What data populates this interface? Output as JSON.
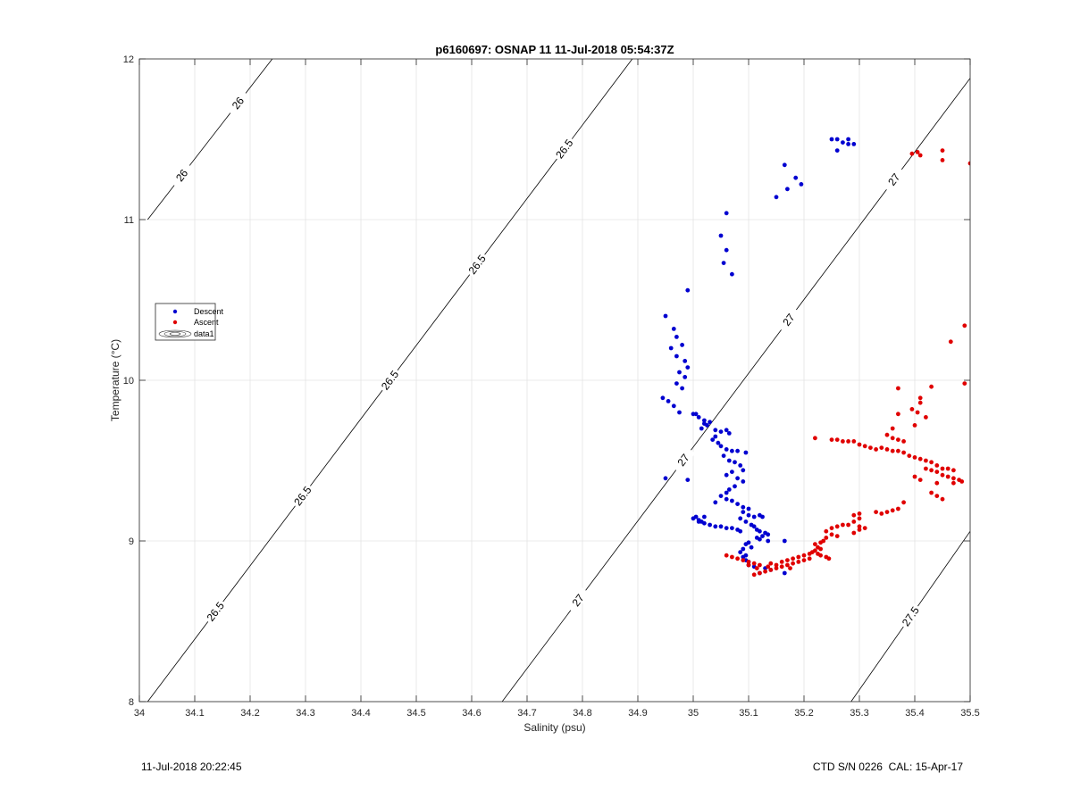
{
  "chart_data": {
    "type": "scatter",
    "title": "p6160697: OSNAP 11 11-Jul-2018 05:54:37Z",
    "xlabel": "Salinity (psu)",
    "ylabel": "Temperature (°C)",
    "xlim": [
      34,
      35.5
    ],
    "ylim": [
      8,
      12
    ],
    "x_ticks": [
      "34",
      "34.1",
      "34.2",
      "34.3",
      "34.4",
      "34.5",
      "34.6",
      "34.7",
      "34.8",
      "34.9",
      "35",
      "35.1",
      "35.2",
      "35.3",
      "35.4",
      "35.5"
    ],
    "y_ticks": [
      "8",
      "9",
      "10",
      "11",
      "12"
    ],
    "grid": true,
    "legend": {
      "placement": "left",
      "entries": [
        {
          "name": "Descent",
          "marker": "dot",
          "color": "#0000d0"
        },
        {
          "name": "Ascent",
          "marker": "dot",
          "color": "#e00000"
        },
        {
          "name": "data1",
          "marker": "contour"
        }
      ]
    },
    "density_contours": [
      {
        "label": "26",
        "levels_text": [
          "26",
          "26"
        ],
        "points": [
          [
            34.015,
            11.0
          ],
          [
            34.24,
            12.0
          ]
        ]
      },
      {
        "label": "26.5",
        "levels_text": [
          "26.5",
          "26.5",
          "26.5",
          "26.5",
          "26.5"
        ],
        "points": [
          [
            34.015,
            8.0
          ],
          [
            34.89,
            12.0
          ]
        ]
      },
      {
        "label": "27",
        "levels_text": [
          "27",
          "27",
          "27",
          "27"
        ],
        "points": [
          [
            34.655,
            8.0
          ],
          [
            35.5,
            11.88
          ]
        ]
      },
      {
        "label": "27.5",
        "levels_text": [
          "27.5"
        ],
        "points": [
          [
            35.285,
            8.0
          ],
          [
            35.5,
            9.06
          ]
        ]
      }
    ],
    "series": [
      {
        "name": "Descent",
        "color": "#0000d0",
        "points": [
          [
            35.25,
            11.5
          ],
          [
            35.26,
            11.5
          ],
          [
            35.27,
            11.48
          ],
          [
            35.28,
            11.5
          ],
          [
            35.29,
            11.47
          ],
          [
            35.26,
            11.43
          ],
          [
            35.28,
            11.47
          ],
          [
            35.165,
            11.34
          ],
          [
            35.185,
            11.26
          ],
          [
            35.195,
            11.22
          ],
          [
            35.17,
            11.19
          ],
          [
            35.15,
            11.14
          ],
          [
            35.06,
            11.04
          ],
          [
            35.05,
            10.9
          ],
          [
            35.06,
            10.81
          ],
          [
            35.055,
            10.73
          ],
          [
            35.07,
            10.66
          ],
          [
            34.99,
            10.56
          ],
          [
            34.95,
            10.4
          ],
          [
            34.965,
            10.32
          ],
          [
            34.97,
            10.27
          ],
          [
            34.98,
            10.22
          ],
          [
            34.96,
            10.2
          ],
          [
            34.97,
            10.15
          ],
          [
            34.985,
            10.12
          ],
          [
            34.99,
            10.08
          ],
          [
            34.975,
            10.05
          ],
          [
            34.985,
            10.02
          ],
          [
            34.97,
            9.98
          ],
          [
            34.98,
            9.95
          ],
          [
            34.945,
            9.89
          ],
          [
            34.955,
            9.87
          ],
          [
            34.965,
            9.84
          ],
          [
            34.975,
            9.8
          ],
          [
            35.0,
            9.79
          ],
          [
            35.005,
            9.79
          ],
          [
            35.01,
            9.77
          ],
          [
            35.02,
            9.75
          ],
          [
            35.02,
            9.73
          ],
          [
            35.025,
            9.72
          ],
          [
            35.03,
            9.74
          ],
          [
            35.015,
            9.7
          ],
          [
            35.04,
            9.69
          ],
          [
            35.05,
            9.68
          ],
          [
            35.06,
            9.69
          ],
          [
            35.065,
            9.67
          ],
          [
            35.04,
            9.65
          ],
          [
            35.035,
            9.63
          ],
          [
            35.045,
            9.61
          ],
          [
            35.05,
            9.59
          ],
          [
            35.06,
            9.57
          ],
          [
            35.07,
            9.56
          ],
          [
            35.08,
            9.56
          ],
          [
            35.095,
            9.55
          ],
          [
            35.055,
            9.53
          ],
          [
            35.065,
            9.5
          ],
          [
            35.075,
            9.49
          ],
          [
            35.085,
            9.47
          ],
          [
            35.09,
            9.44
          ],
          [
            35.07,
            9.43
          ],
          [
            35.06,
            9.41
          ],
          [
            35.08,
            9.39
          ],
          [
            35.09,
            9.37
          ],
          [
            35.075,
            9.34
          ],
          [
            35.065,
            9.32
          ],
          [
            35.06,
            9.3
          ],
          [
            35.05,
            9.28
          ],
          [
            35.06,
            9.26
          ],
          [
            35.07,
            9.25
          ],
          [
            35.08,
            9.23
          ],
          [
            35.09,
            9.21
          ],
          [
            35.1,
            9.2
          ],
          [
            35.04,
            9.24
          ],
          [
            35.09,
            9.18
          ],
          [
            35.1,
            9.16
          ],
          [
            35.11,
            9.15
          ],
          [
            35.12,
            9.16
          ],
          [
            35.125,
            9.15
          ],
          [
            35.085,
            9.14
          ],
          [
            35.095,
            9.12
          ],
          [
            35.105,
            9.1
          ],
          [
            35.11,
            9.09
          ],
          [
            35.115,
            9.07
          ],
          [
            35.12,
            9.06
          ],
          [
            35.13,
            9.05
          ],
          [
            35.135,
            9.04
          ],
          [
            35.125,
            9.03
          ],
          [
            35.115,
            9.02
          ],
          [
            35.12,
            9.01
          ],
          [
            35.135,
            9.0
          ],
          [
            35.165,
            9.0
          ],
          [
            35.1,
            8.99
          ],
          [
            35.095,
            8.98
          ],
          [
            35.105,
            8.96
          ],
          [
            35.09,
            8.95
          ],
          [
            35.085,
            8.93
          ],
          [
            35.095,
            8.91
          ],
          [
            35.09,
            8.9
          ],
          [
            35.095,
            8.88
          ],
          [
            35.1,
            8.87
          ],
          [
            35.1,
            8.85
          ],
          [
            35.11,
            8.84
          ],
          [
            35.13,
            8.83
          ],
          [
            35.14,
            8.82
          ],
          [
            35.12,
            8.8
          ],
          [
            35.165,
            8.8
          ],
          [
            35.0,
            9.14
          ],
          [
            35.005,
            9.15
          ],
          [
            35.01,
            9.13
          ],
          [
            35.015,
            9.12
          ],
          [
            35.02,
            9.11
          ],
          [
            35.03,
            9.1
          ],
          [
            35.04,
            9.09
          ],
          [
            35.05,
            9.09
          ],
          [
            35.06,
            9.08
          ],
          [
            35.07,
            9.08
          ],
          [
            35.08,
            9.07
          ],
          [
            35.085,
            9.06
          ],
          [
            35.02,
            9.15
          ],
          [
            35.01,
            9.12
          ],
          [
            34.95,
            9.39
          ],
          [
            34.99,
            9.38
          ]
        ]
      },
      {
        "name": "Ascent",
        "color": "#e00000",
        "points": [
          [
            35.395,
            11.41
          ],
          [
            35.405,
            11.42
          ],
          [
            35.41,
            11.4
          ],
          [
            35.45,
            11.43
          ],
          [
            35.45,
            11.37
          ],
          [
            35.5,
            11.35
          ],
          [
            35.49,
            10.34
          ],
          [
            35.465,
            10.24
          ],
          [
            35.49,
            9.98
          ],
          [
            35.43,
            9.96
          ],
          [
            35.37,
            9.95
          ],
          [
            35.41,
            9.89
          ],
          [
            35.41,
            9.86
          ],
          [
            35.395,
            9.82
          ],
          [
            35.405,
            9.8
          ],
          [
            35.37,
            9.79
          ],
          [
            35.42,
            9.77
          ],
          [
            35.4,
            9.72
          ],
          [
            35.36,
            9.7
          ],
          [
            35.35,
            9.66
          ],
          [
            35.36,
            9.64
          ],
          [
            35.37,
            9.63
          ],
          [
            35.38,
            9.62
          ],
          [
            35.22,
            9.64
          ],
          [
            35.25,
            9.63
          ],
          [
            35.26,
            9.63
          ],
          [
            35.27,
            9.62
          ],
          [
            35.28,
            9.62
          ],
          [
            35.29,
            9.62
          ],
          [
            35.3,
            9.6
          ],
          [
            35.31,
            9.59
          ],
          [
            35.32,
            9.58
          ],
          [
            35.33,
            9.57
          ],
          [
            35.34,
            9.58
          ],
          [
            35.35,
            9.57
          ],
          [
            35.36,
            9.56
          ],
          [
            35.37,
            9.56
          ],
          [
            35.38,
            9.55
          ],
          [
            35.39,
            9.53
          ],
          [
            35.4,
            9.52
          ],
          [
            35.41,
            9.51
          ],
          [
            35.42,
            9.5
          ],
          [
            35.43,
            9.49
          ],
          [
            35.44,
            9.47
          ],
          [
            35.45,
            9.45
          ],
          [
            35.46,
            9.45
          ],
          [
            35.47,
            9.44
          ],
          [
            35.42,
            9.45
          ],
          [
            35.43,
            9.44
          ],
          [
            35.44,
            9.43
          ],
          [
            35.45,
            9.41
          ],
          [
            35.46,
            9.4
          ],
          [
            35.47,
            9.39
          ],
          [
            35.48,
            9.38
          ],
          [
            35.485,
            9.37
          ],
          [
            35.47,
            9.36
          ],
          [
            35.4,
            9.4
          ],
          [
            35.41,
            9.38
          ],
          [
            35.44,
            9.36
          ],
          [
            35.43,
            9.3
          ],
          [
            35.44,
            9.28
          ],
          [
            35.45,
            9.26
          ],
          [
            35.38,
            9.24
          ],
          [
            35.37,
            9.2
          ],
          [
            35.36,
            9.19
          ],
          [
            35.35,
            9.18
          ],
          [
            35.34,
            9.17
          ],
          [
            35.33,
            9.18
          ],
          [
            35.3,
            9.17
          ],
          [
            35.29,
            9.16
          ],
          [
            35.3,
            9.14
          ],
          [
            35.29,
            9.12
          ],
          [
            35.28,
            9.1
          ],
          [
            35.3,
            9.09
          ],
          [
            35.31,
            9.08
          ],
          [
            35.3,
            9.07
          ],
          [
            35.29,
            9.05
          ],
          [
            35.27,
            9.1
          ],
          [
            35.26,
            9.09
          ],
          [
            35.25,
            9.08
          ],
          [
            35.24,
            9.06
          ],
          [
            35.25,
            9.04
          ],
          [
            35.26,
            9.03
          ],
          [
            35.24,
            9.02
          ],
          [
            35.235,
            9.0
          ],
          [
            35.23,
            8.99
          ],
          [
            35.22,
            8.98
          ],
          [
            35.225,
            8.96
          ],
          [
            35.23,
            8.95
          ],
          [
            35.22,
            8.94
          ],
          [
            35.215,
            8.93
          ],
          [
            35.225,
            8.92
          ],
          [
            35.23,
            8.91
          ],
          [
            35.24,
            8.9
          ],
          [
            35.245,
            8.89
          ],
          [
            35.21,
            8.92
          ],
          [
            35.2,
            8.91
          ],
          [
            35.19,
            8.9
          ],
          [
            35.18,
            8.89
          ],
          [
            35.17,
            8.88
          ],
          [
            35.16,
            8.87
          ],
          [
            35.21,
            8.89
          ],
          [
            35.2,
            8.88
          ],
          [
            35.19,
            8.87
          ],
          [
            35.18,
            8.86
          ],
          [
            35.17,
            8.85
          ],
          [
            35.16,
            8.84
          ],
          [
            35.15,
            8.83
          ],
          [
            35.14,
            8.82
          ],
          [
            35.135,
            8.84
          ],
          [
            35.12,
            8.85
          ],
          [
            35.11,
            8.86
          ],
          [
            35.1,
            8.87
          ],
          [
            35.09,
            8.88
          ],
          [
            35.08,
            8.89
          ],
          [
            35.07,
            8.9
          ],
          [
            35.06,
            8.91
          ],
          [
            35.1,
            8.85
          ],
          [
            35.115,
            8.83
          ],
          [
            35.13,
            8.81
          ],
          [
            35.12,
            8.8
          ],
          [
            35.11,
            8.79
          ],
          [
            35.14,
            8.86
          ],
          [
            35.15,
            8.85
          ],
          [
            35.175,
            8.83
          ]
        ]
      }
    ]
  },
  "footer": {
    "left": "11-Jul-2018 20:22:45",
    "right": "CTD S/N 0226  CAL: 15-Apr-17"
  }
}
